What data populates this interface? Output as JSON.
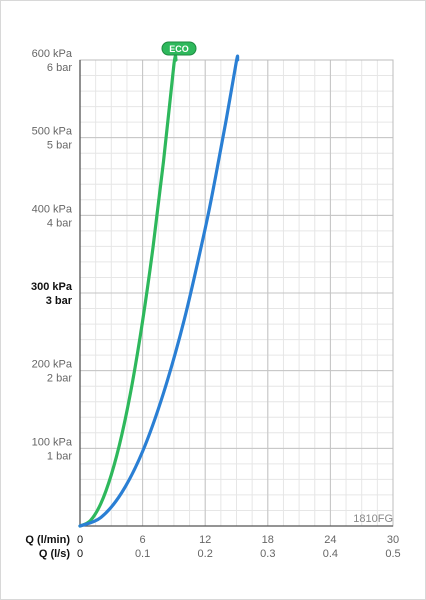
{
  "chart_data": {
    "type": "line",
    "code_label": "1810FG",
    "eco_badge": "ECO",
    "x_axis_primary": {
      "title": "Q (l/min)",
      "ticks": [
        "0",
        "6",
        "12",
        "18",
        "24",
        "30"
      ],
      "range": [
        0,
        30
      ]
    },
    "x_axis_secondary": {
      "title": "Q (l/s)",
      "ticks": [
        "0",
        "0.1",
        "0.2",
        "0.3",
        "0.4",
        "0.5"
      ]
    },
    "y_axis": {
      "range": [
        0,
        600
      ],
      "ticks": [
        {
          "value": 100,
          "kpa": "100 kPa",
          "bar": "1 bar",
          "bold": false
        },
        {
          "value": 200,
          "kpa": "200 kPa",
          "bar": "2 bar",
          "bold": false
        },
        {
          "value": 300,
          "kpa": "300 kPa",
          "bar": "3 bar",
          "bold": true
        },
        {
          "value": 400,
          "kpa": "400 kPa",
          "bar": "4 bar",
          "bold": false
        },
        {
          "value": 500,
          "kpa": "500 kPa",
          "bar": "5 bar",
          "bold": false
        },
        {
          "value": 600,
          "kpa": "600 kPa",
          "bar": "6 bar",
          "bold": false
        }
      ]
    },
    "grid": true,
    "series": [
      {
        "color": "#2eb85c",
        "marker": "ECO",
        "points": [
          [
            0,
            0
          ],
          [
            1,
            7
          ],
          [
            2,
            29
          ],
          [
            3,
            66
          ],
          [
            4,
            117
          ],
          [
            5,
            183
          ],
          [
            6,
            264
          ],
          [
            7,
            359
          ],
          [
            8,
            469
          ],
          [
            9,
            594
          ],
          [
            9.2,
            600
          ]
        ]
      },
      {
        "color": "#2a7fd4",
        "points": [
          [
            0,
            0
          ],
          [
            2,
            11
          ],
          [
            4,
            43
          ],
          [
            6,
            96
          ],
          [
            8,
            171
          ],
          [
            10,
            266
          ],
          [
            12,
            383
          ],
          [
            13,
            450
          ],
          [
            14,
            522
          ],
          [
            15,
            599
          ],
          [
            15.1,
            600
          ]
        ]
      }
    ]
  }
}
